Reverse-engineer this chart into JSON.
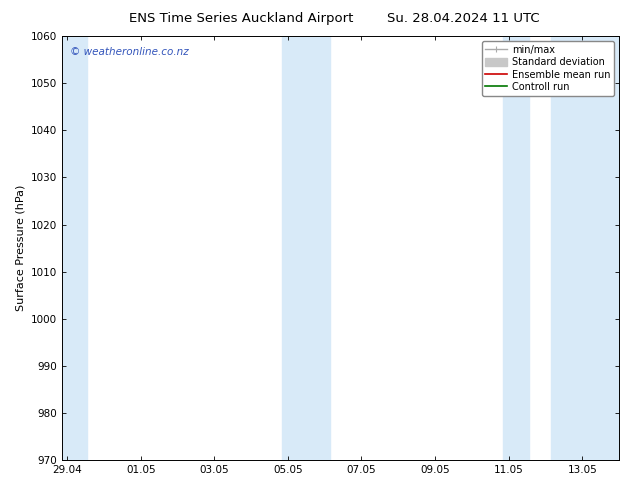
{
  "title_left": "ENS Time Series Auckland Airport",
  "title_right": "Su. 28.04.2024 11 UTC",
  "ylabel": "Surface Pressure (hPa)",
  "ylim": [
    970,
    1060
  ],
  "yticks": [
    970,
    980,
    990,
    1000,
    1010,
    1020,
    1030,
    1040,
    1050,
    1060
  ],
  "xtick_labels": [
    "29.04",
    "01.05",
    "03.05",
    "05.05",
    "07.05",
    "09.05",
    "11.05",
    "13.05"
  ],
  "xtick_positions": [
    0,
    2,
    4,
    6,
    8,
    10,
    12,
    14
  ],
  "xlim": [
    -0.15,
    15.0
  ],
  "shaded_regions": [
    {
      "x_start": -0.15,
      "x_end": 0.55
    },
    {
      "x_start": 5.85,
      "x_end": 7.15
    },
    {
      "x_start": 11.85,
      "x_end": 12.55
    },
    {
      "x_start": 13.15,
      "x_end": 15.0
    }
  ],
  "shade_color": "#d8eaf8",
  "watermark_text": "© weatheronline.co.nz",
  "watermark_color": "#3355bb",
  "bg_color": "#ffffff",
  "axes_bg_color": "#ffffff",
  "font_color": "#000000",
  "title_fontsize": 9.5,
  "ylabel_fontsize": 8,
  "tick_fontsize": 7.5,
  "legend_fontsize": 7,
  "watermark_fontsize": 7.5
}
